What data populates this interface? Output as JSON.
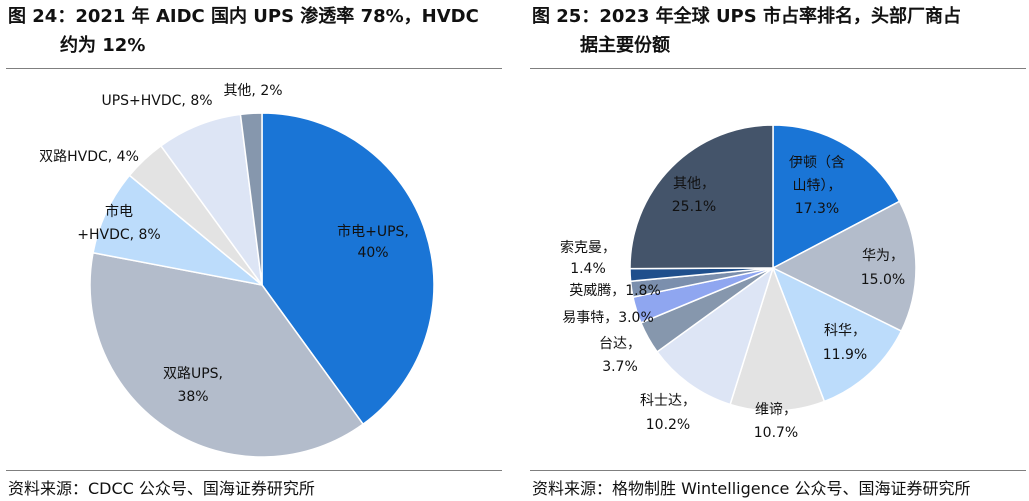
{
  "chart_data": [
    {
      "type": "pie",
      "title_line1": "图 24：2021 年 AIDC 国内 UPS 渗透率 78%，HVDC",
      "title_line2": "约为 12%",
      "categories": [
        "市电+UPS",
        "双路UPS",
        "市电+HVDC",
        "双路HVDC",
        "UPS+HVDC",
        "其他"
      ],
      "values": [
        40,
        38,
        8,
        4,
        8,
        2
      ],
      "value_labels": [
        "40%",
        "38%",
        "8%",
        "4%",
        "8%",
        "2%"
      ],
      "label_texts": [
        "市电+UPS,",
        "双路UPS,",
        "+HVDC, 8%",
        "双路HVDC, 4%",
        "UPS+HVDC, 8%",
        "其他, 2%"
      ],
      "label_prefix_line": "市电",
      "colors": [
        "#1a75d6",
        "#b3bccb",
        "#bcdcfb",
        "#e3e3e3",
        "#dde5f5",
        "#8697ad"
      ],
      "source": "资料来源：CDCC 公众号、国海证券研究所"
    },
    {
      "type": "pie",
      "title_line1": "图 25：2023 年全球 UPS 市占率排名，头部厂商占",
      "title_line2": "据主要份额",
      "categories": [
        "伊顿（含山特）",
        "华为",
        "科华",
        "维谛",
        "科士达",
        "台达",
        "易事特",
        "英威腾",
        "索克曼",
        "其他"
      ],
      "values": [
        17.3,
        15.0,
        11.9,
        10.7,
        10.2,
        3.7,
        3.0,
        1.8,
        1.4,
        25.1
      ],
      "value_labels": [
        "17.3%",
        "15.0%",
        "11.9%",
        "10.7%",
        "10.2%",
        "3.7%",
        "3.0%",
        "1.8%",
        "1.4%",
        "25.1%"
      ],
      "label_lines": [
        [
          "伊顿（含",
          "山特），",
          "17.3%"
        ],
        [
          "华为，",
          "15.0%"
        ],
        [
          "科华，",
          "11.9%"
        ],
        [
          "维谛，",
          "10.7%"
        ],
        [
          "科士达，",
          "10.2%"
        ],
        [
          "台达，",
          "3.7%"
        ],
        [
          "易事特，3.0%"
        ],
        [
          "英威腾，1.8%"
        ],
        [
          "索克曼，",
          "1.4%"
        ],
        [
          "其他，",
          "25.1%"
        ]
      ],
      "colors": [
        "#1a75d6",
        "#b3bccb",
        "#bcdcfb",
        "#e3e3e3",
        "#dde5f5",
        "#8697ad",
        "#8fa6f0",
        "#7b8fad",
        "#1f4f8c",
        "#44546a"
      ],
      "source": "资料来源：格物制胜 Wintelligence 公众号、国海证券研究所"
    }
  ]
}
